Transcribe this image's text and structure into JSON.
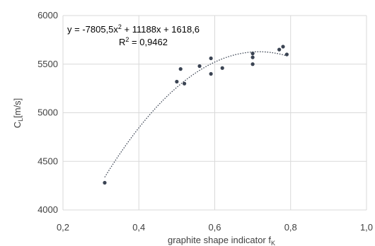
{
  "chart_data": {
    "type": "scatter",
    "xlabel": "graphite shape indicator f",
    "xlabel_subscript": "K",
    "ylabel": "C",
    "ylabel_subscript": "L",
    "ylabel_unit": "[m/s]",
    "xlim": [
      0.2,
      1.0
    ],
    "ylim": [
      4000,
      6000
    ],
    "x_ticks": [
      0.2,
      0.4,
      0.6,
      0.8,
      1.0
    ],
    "x_tick_labels": [
      "0,2",
      "0,4",
      "0,6",
      "0,8",
      "1,0"
    ],
    "y_ticks": [
      4000,
      4500,
      5000,
      5500,
      6000
    ],
    "y_tick_labels": [
      "4000",
      "4500",
      "5000",
      "5500",
      "6000"
    ],
    "grid": true,
    "points": [
      {
        "x": 0.31,
        "y": 4280
      },
      {
        "x": 0.5,
        "y": 5320
      },
      {
        "x": 0.51,
        "y": 5450
      },
      {
        "x": 0.52,
        "y": 5300
      },
      {
        "x": 0.56,
        "y": 5480
      },
      {
        "x": 0.59,
        "y": 5560
      },
      {
        "x": 0.59,
        "y": 5400
      },
      {
        "x": 0.62,
        "y": 5460
      },
      {
        "x": 0.7,
        "y": 5610
      },
      {
        "x": 0.7,
        "y": 5570
      },
      {
        "x": 0.7,
        "y": 5500
      },
      {
        "x": 0.77,
        "y": 5650
      },
      {
        "x": 0.78,
        "y": 5680
      },
      {
        "x": 0.79,
        "y": 5600
      }
    ],
    "trendline": {
      "type": "polynomial",
      "coefficients": {
        "a2": -7805.5,
        "a1": 11188,
        "a0": 1618.6
      },
      "x_range": [
        0.31,
        0.79
      ],
      "equation_prefix": "y = -7805,5x",
      "equation_sup": "2",
      "equation_suffix": " + 11188x + 1618,6",
      "r2_prefix": "R",
      "r2_sup": "2",
      "r2_suffix": " = 0,9462"
    },
    "colors": {
      "marker": "#3b4453",
      "trendline": "#3b4453",
      "grid": "#d9d9d9",
      "text": "#404040"
    }
  }
}
